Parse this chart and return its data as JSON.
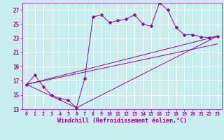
{
  "xlabel": "Windchill (Refroidissement éolien,°C)",
  "bg_color": "#c8eeee",
  "line_color": "#990099",
  "grid_color": "#ffffff",
  "xlim": [
    -0.5,
    23.5
  ],
  "ylim": [
    13,
    28
  ],
  "yticks": [
    13,
    15,
    17,
    19,
    21,
    23,
    25,
    27
  ],
  "xticks": [
    0,
    1,
    2,
    3,
    4,
    5,
    6,
    7,
    8,
    9,
    10,
    11,
    12,
    13,
    14,
    15,
    16,
    17,
    18,
    19,
    20,
    21,
    22,
    23
  ],
  "line1_x": [
    0,
    1,
    2,
    3,
    4,
    5,
    6,
    7,
    8,
    9,
    10,
    11,
    12,
    13,
    14,
    15,
    16,
    17,
    18,
    19,
    20,
    21,
    22,
    23
  ],
  "line1_y": [
    16.5,
    17.8,
    16.2,
    15.0,
    14.5,
    14.3,
    13.2,
    17.3,
    26.0,
    26.3,
    25.2,
    25.5,
    25.7,
    26.3,
    25.0,
    24.7,
    28.0,
    27.0,
    24.5,
    23.5,
    23.5,
    23.2,
    23.1,
    23.3
  ],
  "line2_x": [
    0,
    6,
    23
  ],
  "line2_y": [
    16.5,
    13.2,
    23.3
  ],
  "line3_x": [
    0,
    23
  ],
  "line3_y": [
    16.5,
    22.2
  ],
  "line4_x": [
    0,
    23
  ],
  "line4_y": [
    16.5,
    23.3
  ],
  "markersize": 2.5
}
